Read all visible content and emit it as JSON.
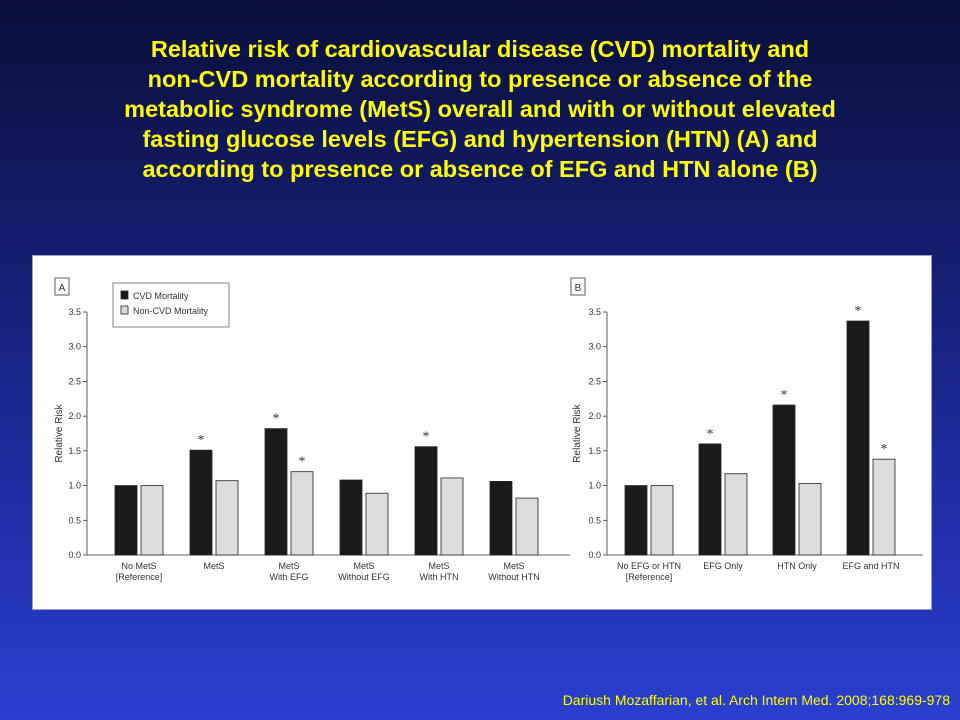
{
  "title_lines": [
    "Relative risk of cardiovascular disease (CVD) mortality and",
    "non-CVD mortality according to presence or absence of the",
    "metabolic syndrome (MetS) overall and with or without elevated",
    "fasting glucose levels (EFG) and hypertension (HTN) (A) and",
    "according to presence or absence of EFG and HTN alone (B)"
  ],
  "citation": "Dariush Mozaffarian, et al. Arch Intern Med. 2008;168:969-978",
  "colors": {
    "cvd": "#1a1a1a",
    "non_cvd": "#dcdcdc",
    "title": "#ffff00"
  },
  "chart_data": [
    {
      "type": "bar",
      "panel_label": "A",
      "ylabel": "Relative Risk",
      "ylim": [
        0,
        3.5
      ],
      "yticks": [
        "0.0",
        "0.5",
        "1.0",
        "1.5",
        "2.0",
        "2.5",
        "3.0",
        "3.5"
      ],
      "legend": {
        "placement": "top-left",
        "entries": [
          "CVD Mortality",
          "Non-CVD Mortality"
        ]
      },
      "categories": [
        [
          "No MetS",
          "[Reference]"
        ],
        [
          "MetS"
        ],
        [
          "MetS",
          "With EFG"
        ],
        [
          "MetS",
          "Without EFG"
        ],
        [
          "MetS",
          "With HTN"
        ],
        [
          "MetS",
          "Without HTN"
        ]
      ],
      "series": [
        {
          "name": "CVD Mortality",
          "values": [
            1.0,
            1.51,
            1.82,
            1.08,
            1.56,
            1.06
          ],
          "significant": [
            false,
            true,
            true,
            false,
            true,
            false
          ]
        },
        {
          "name": "Non-CVD Mortality",
          "values": [
            1.0,
            1.07,
            1.2,
            0.89,
            1.11,
            0.82
          ],
          "significant": [
            false,
            false,
            true,
            false,
            false,
            false
          ]
        }
      ]
    },
    {
      "type": "bar",
      "panel_label": "B",
      "ylabel": "Relative Risk",
      "ylim": [
        0,
        3.5
      ],
      "yticks": [
        "0.0",
        "0.5",
        "1.0",
        "1.5",
        "2.0",
        "2.5",
        "3.0",
        "3.5"
      ],
      "categories": [
        [
          "No EFG or HTN",
          "[Reference]"
        ],
        [
          "EFG Only"
        ],
        [
          "HTN Only"
        ],
        [
          "EFG and HTN"
        ]
      ],
      "series": [
        {
          "name": "CVD Mortality",
          "values": [
            1.0,
            1.6,
            2.16,
            3.37
          ],
          "significant": [
            false,
            true,
            true,
            true
          ]
        },
        {
          "name": "Non-CVD Mortality",
          "values": [
            1.0,
            1.17,
            1.03,
            1.38
          ],
          "significant": [
            false,
            false,
            false,
            true
          ]
        }
      ]
    }
  ]
}
